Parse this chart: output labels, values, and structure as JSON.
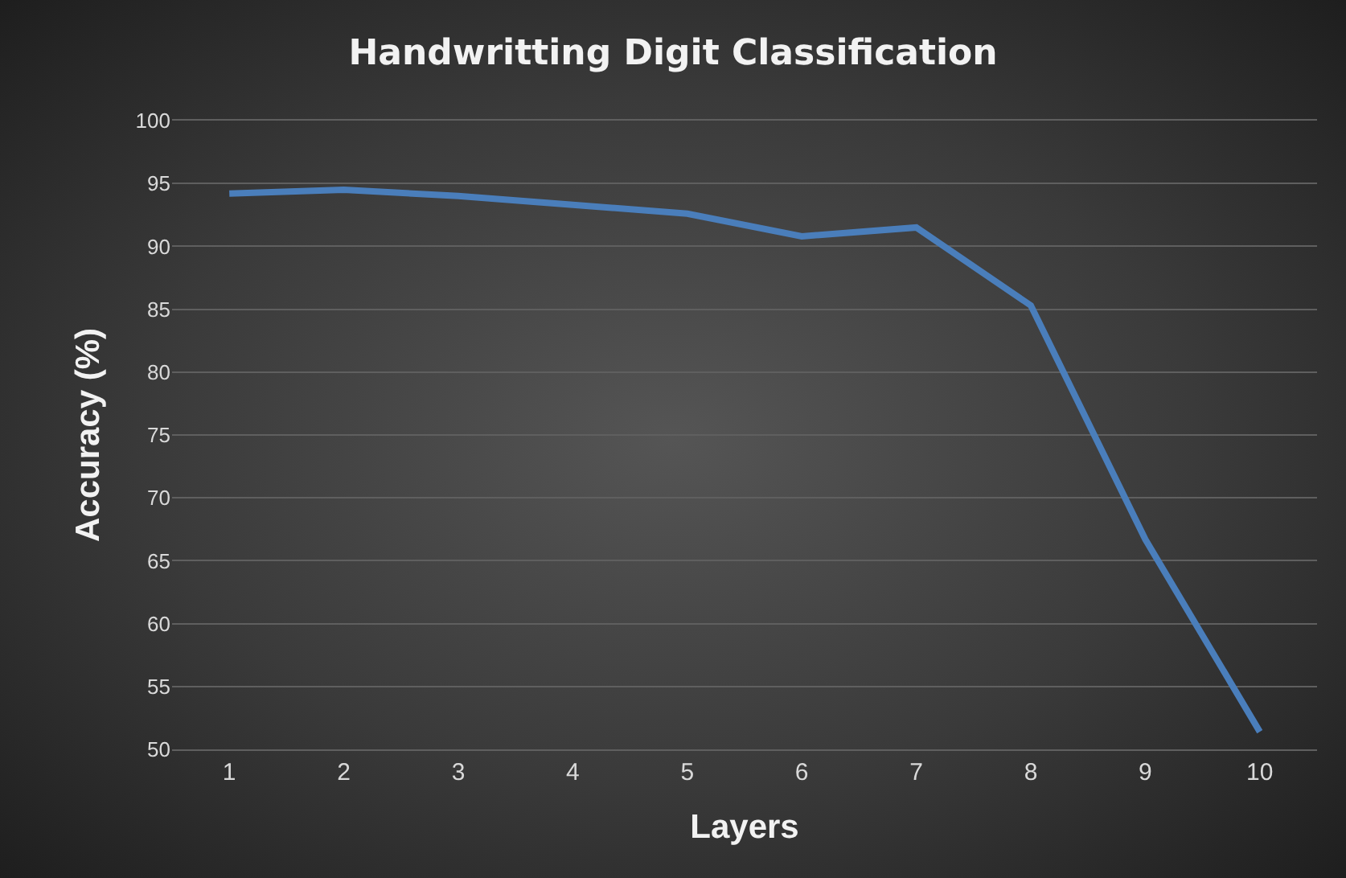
{
  "chart_data": {
    "type": "line",
    "title": "Handwritting Digit Classification",
    "xlabel": "Layers",
    "ylabel": "Accuracy (%)",
    "categories": [
      "1",
      "2",
      "3",
      "4",
      "5",
      "6",
      "7",
      "8",
      "9",
      "10"
    ],
    "series": [
      {
        "color": "#4a7ebb",
        "values": [
          94.2,
          94.5,
          94.0,
          93.3,
          92.6,
          90.8,
          91.5,
          85.3,
          66.7,
          51.4
        ]
      }
    ],
    "ylim": [
      50,
      100
    ],
    "yticks": [
      50,
      55,
      60,
      65,
      70,
      75,
      80,
      85,
      90,
      95,
      100
    ],
    "grid": "y",
    "marker": "none",
    "line_style": "solid"
  }
}
